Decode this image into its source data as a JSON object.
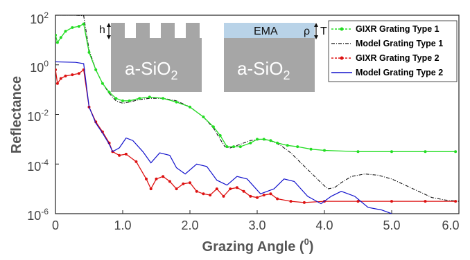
{
  "chart_data": {
    "type": "line",
    "title": "",
    "xlabel": "Grazing Angle (",
    "xlabel_sup": "0",
    "xlabel_close": ")",
    "ylabel": "Reflectance",
    "xlim": [
      0,
      6
    ],
    "ylim_log10": [
      -6,
      2
    ],
    "y_scale": "log",
    "x_ticks": [
      "0",
      "1.0",
      "2.0",
      "3.0",
      "4.0",
      "5.0",
      "6.0"
    ],
    "y_ticks": [
      {
        "base": "10",
        "exp": "-6"
      },
      {
        "base": "10",
        "exp": "-4"
      },
      {
        "base": "10",
        "exp": "-2"
      },
      {
        "base": "10",
        "exp": "0"
      },
      {
        "base": "10",
        "exp": "2"
      }
    ],
    "legend_position": "top-right",
    "series": [
      {
        "name": "GIXR Grating Type 1",
        "color": "#22dd22",
        "style": "line-with-markers",
        "x": [
          0.0,
          0.03,
          0.08,
          0.15,
          0.25,
          0.35,
          0.42,
          0.5,
          0.6,
          0.7,
          0.8,
          0.9,
          1.0,
          1.1,
          1.25,
          1.4,
          1.6,
          1.8,
          2.0,
          2.2,
          2.35,
          2.45,
          2.55,
          2.65,
          2.75,
          2.9,
          3.0,
          3.1,
          3.2,
          3.3,
          3.45,
          3.6,
          3.8,
          4.0,
          4.5,
          5.0,
          5.5,
          5.95
        ],
        "log10y": [
          1.2,
          0.9,
          1.1,
          1.35,
          1.5,
          1.55,
          1.65,
          0.5,
          -0.2,
          -0.75,
          -1.1,
          -1.35,
          -1.45,
          -1.45,
          -1.35,
          -1.3,
          -1.35,
          -1.5,
          -1.7,
          -2.1,
          -2.5,
          -2.85,
          -3.3,
          -3.3,
          -3.3,
          -3.15,
          -3.0,
          -3.0,
          -3.05,
          -3.15,
          -3.25,
          -3.3,
          -3.4,
          -3.45,
          -3.5,
          -3.5,
          -3.5,
          -3.5
        ]
      },
      {
        "name": "Model Grating Type 1",
        "color": "#111111",
        "style": "dash-dot",
        "x": [
          0.0,
          0.3,
          0.42,
          0.5,
          0.6,
          0.7,
          0.8,
          0.9,
          1.0,
          1.1,
          1.25,
          1.4,
          1.6,
          1.8,
          2.0,
          2.2,
          2.35,
          2.45,
          2.52,
          2.6,
          2.75,
          2.9,
          3.05,
          3.2,
          3.35,
          3.5,
          3.65,
          3.8,
          3.95,
          4.05,
          4.15,
          4.25,
          4.4,
          4.6,
          4.8,
          5.0,
          5.2,
          5.4,
          5.6,
          5.8,
          6.0
        ],
        "log10y": [
          2.0,
          2.0,
          1.98,
          0.6,
          -0.2,
          -0.75,
          -1.15,
          -1.45,
          -1.55,
          -1.5,
          -1.4,
          -1.35,
          -1.35,
          -1.45,
          -1.7,
          -2.1,
          -2.55,
          -3.0,
          -3.3,
          -3.35,
          -3.2,
          -3.05,
          -3.0,
          -3.05,
          -3.25,
          -3.55,
          -3.95,
          -4.35,
          -4.75,
          -5.0,
          -4.95,
          -4.75,
          -4.5,
          -4.4,
          -4.45,
          -4.6,
          -4.85,
          -5.1,
          -5.35,
          -5.45,
          -5.5
        ]
      },
      {
        "name": "GIXR Grating Type 2",
        "color": "#dd1111",
        "style": "line-with-markers",
        "x": [
          0.0,
          0.03,
          0.08,
          0.15,
          0.25,
          0.35,
          0.42,
          0.5,
          0.6,
          0.7,
          0.8,
          0.85,
          0.95,
          1.05,
          1.2,
          1.35,
          1.42,
          1.5,
          1.6,
          1.7,
          1.8,
          1.9,
          2.0,
          2.1,
          2.2,
          2.3,
          2.4,
          2.5,
          2.6,
          2.7,
          2.8,
          2.9,
          3.0,
          3.1,
          3.2,
          3.3,
          3.5,
          3.7,
          4.0,
          4.5,
          5.0,
          5.5,
          5.95
        ],
        "log10y": [
          -0.2,
          -0.75,
          -0.55,
          -0.45,
          -0.4,
          -0.35,
          -0.2,
          -1.7,
          -2.3,
          -2.7,
          -3.15,
          -3.5,
          -3.65,
          -3.6,
          -3.9,
          -4.6,
          -5.0,
          -4.6,
          -4.5,
          -4.7,
          -5.0,
          -4.8,
          -4.75,
          -5.1,
          -5.2,
          -5.25,
          -5.0,
          -5.3,
          -5.0,
          -4.95,
          -5.1,
          -5.3,
          -5.35,
          -5.25,
          -5.2,
          -5.4,
          -5.5,
          -5.55,
          -5.5,
          -5.5,
          -5.5,
          -5.5,
          -5.5
        ]
      },
      {
        "name": "Model Grating Type 2",
        "color": "#1111cc",
        "style": "line",
        "x": [
          0.0,
          0.3,
          0.42,
          0.5,
          0.6,
          0.7,
          0.8,
          0.85,
          0.95,
          1.05,
          1.15,
          1.3,
          1.42,
          1.55,
          1.7,
          1.8,
          1.93,
          2.1,
          2.25,
          2.4,
          2.55,
          2.7,
          2.85,
          3.05,
          3.25,
          3.4,
          3.55,
          3.75,
          3.95,
          4.1,
          4.25,
          4.45,
          4.65,
          4.85,
          5.0
        ],
        "log10y": [
          0.12,
          0.1,
          0.05,
          -1.7,
          -2.35,
          -2.75,
          -3.2,
          -3.5,
          -3.35,
          -2.95,
          -3.05,
          -3.5,
          -3.95,
          -3.55,
          -3.65,
          -4.15,
          -4.4,
          -4.0,
          -4.1,
          -4.65,
          -4.85,
          -4.5,
          -4.6,
          -5.2,
          -5.0,
          -4.6,
          -4.7,
          -5.3,
          -5.6,
          -5.3,
          -5.1,
          -5.3,
          -5.75,
          -5.85,
          -6.0
        ]
      }
    ]
  },
  "inset": {
    "left_substrate": "a-SiO",
    "left_sub": "2",
    "left_height_label": "h",
    "right_substrate": "a-SiO",
    "right_sub": "2",
    "right_layer_label": "EMA",
    "right_density_label": "ρ",
    "right_thickness_label": "T",
    "substrate_color": "#a6a6a6",
    "layer_color": "#b9d3e8"
  }
}
